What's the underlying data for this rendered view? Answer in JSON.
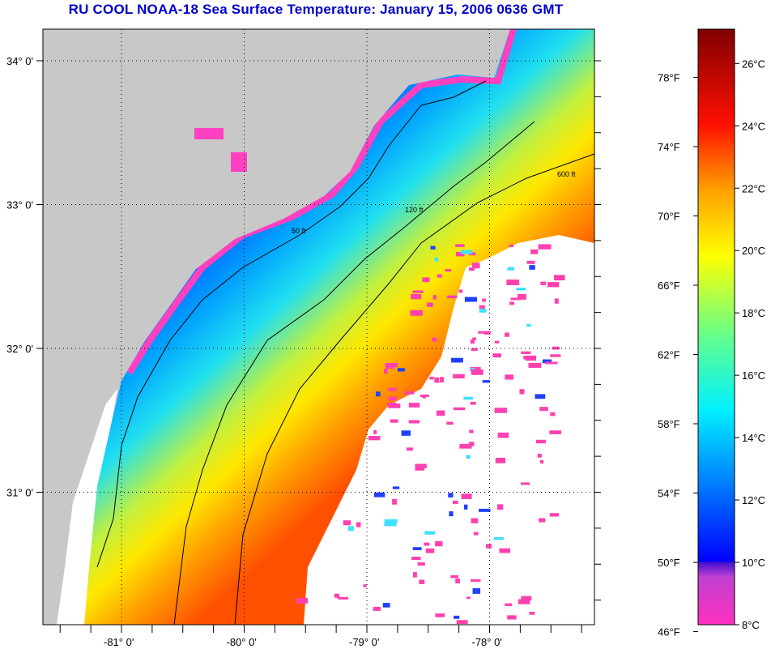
{
  "title": "RU COOL  NOAA-18  Sea Surface Temperature:  January 15, 2006 0636 GMT",
  "map": {
    "lat_labels": [
      "34° 0'",
      "33° 0'",
      "32° 0'",
      "31° 0'"
    ],
    "lat_values": [
      34,
      33,
      32,
      31
    ],
    "lon_labels": [
      "-81° 0'",
      "-80° 0'",
      "-79° 0'",
      "-78° 0'"
    ],
    "lon_values": [
      -81,
      -80,
      -79,
      -78
    ],
    "contour_labels": [
      "50 ft",
      "120 ft",
      "600 ft"
    ],
    "colors": {
      "land": "#c8c8c8",
      "cloud": "#ffffff",
      "coast_cold": "#ff40c0"
    }
  },
  "colorbar": {
    "fahrenheit_labels": [
      "78°F",
      "74°F",
      "70°F",
      "66°F",
      "62°F",
      "58°F",
      "54°F",
      "50°F",
      "46°F"
    ],
    "fahrenheit_values": [
      78,
      74,
      70,
      66,
      62,
      58,
      54,
      50,
      46
    ],
    "celsius_labels": [
      "26°C",
      "24°C",
      "22°C",
      "20°C",
      "18°C",
      "16°C",
      "14°C",
      "12°C",
      "10°C",
      "8°C"
    ],
    "celsius_values": [
      26,
      24,
      22,
      20,
      18,
      16,
      14,
      12,
      10,
      8
    ],
    "range_celsius": [
      8,
      27.1
    ]
  }
}
